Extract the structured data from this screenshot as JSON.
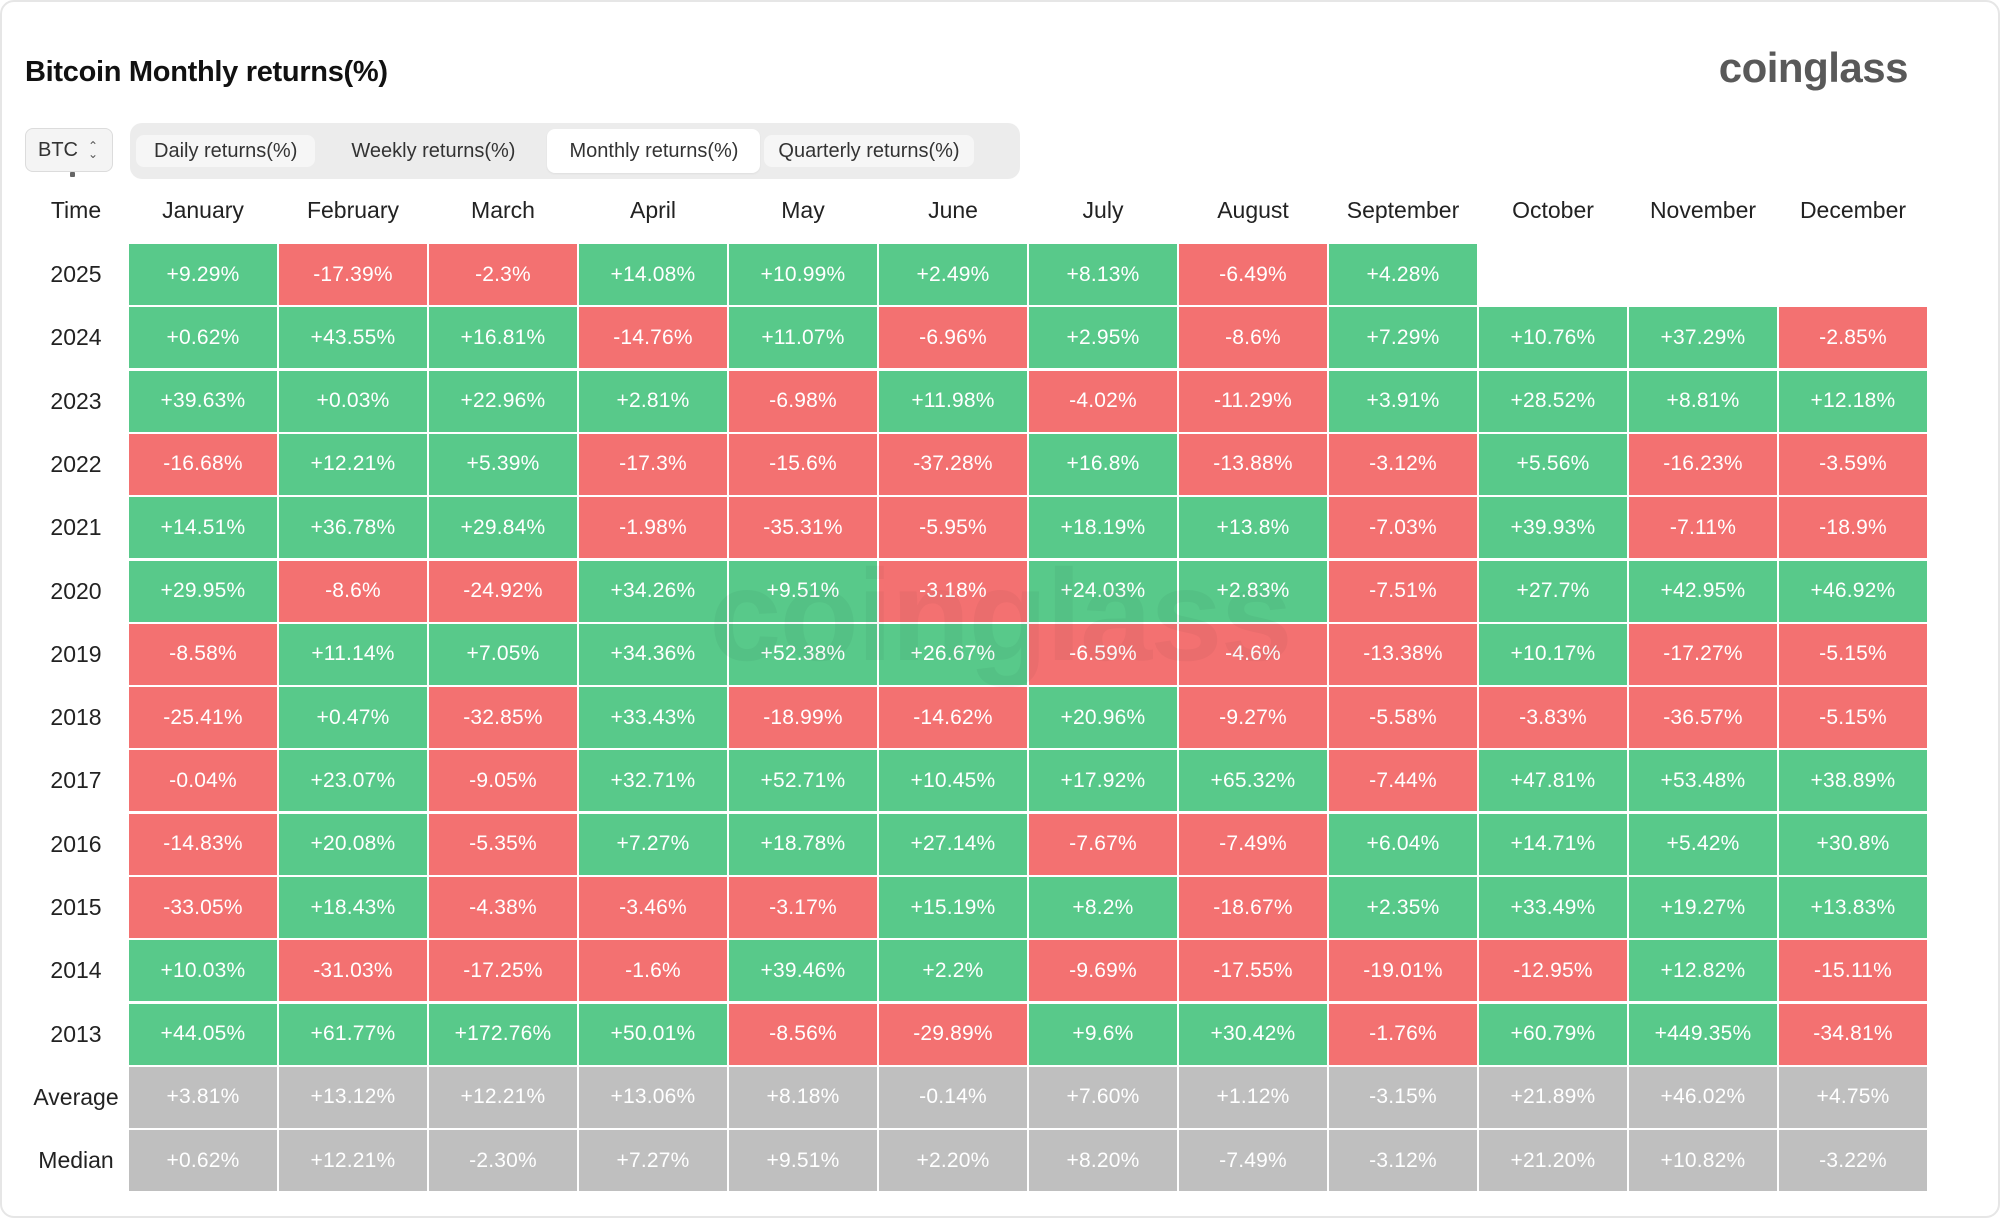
{
  "title": "Bitcoin Monthly returns(%)",
  "brand": "coinglass",
  "watermark": "coinglass",
  "asset_select": {
    "value": "BTC"
  },
  "tabs": [
    {
      "label": "Daily returns(%)",
      "active": false
    },
    {
      "label": "Weekly returns(%)",
      "active": false
    },
    {
      "label": "Monthly returns(%)",
      "active": true
    },
    {
      "label": "Quarterly returns(%)",
      "active": false
    }
  ],
  "colors": {
    "positive": "#58c98a",
    "negative": "#f37171",
    "summary": "#bfbfbf"
  },
  "chart_data": {
    "type": "heatmap",
    "row_header": "Time",
    "columns": [
      "January",
      "February",
      "March",
      "April",
      "May",
      "June",
      "July",
      "August",
      "September",
      "October",
      "November",
      "December"
    ],
    "rows": [
      {
        "label": "2025",
        "values": [
          "+9.29%",
          "-17.39%",
          "-2.3%",
          "+14.08%",
          "+10.99%",
          "+2.49%",
          "+8.13%",
          "-6.49%",
          "+4.28%",
          null,
          null,
          null
        ]
      },
      {
        "label": "2024",
        "values": [
          "+0.62%",
          "+43.55%",
          "+16.81%",
          "-14.76%",
          "+11.07%",
          "-6.96%",
          "+2.95%",
          "-8.6%",
          "+7.29%",
          "+10.76%",
          "+37.29%",
          "-2.85%"
        ]
      },
      {
        "label": "2023",
        "values": [
          "+39.63%",
          "+0.03%",
          "+22.96%",
          "+2.81%",
          "-6.98%",
          "+11.98%",
          "-4.02%",
          "-11.29%",
          "+3.91%",
          "+28.52%",
          "+8.81%",
          "+12.18%"
        ]
      },
      {
        "label": "2022",
        "values": [
          "-16.68%",
          "+12.21%",
          "+5.39%",
          "-17.3%",
          "-15.6%",
          "-37.28%",
          "+16.8%",
          "-13.88%",
          "-3.12%",
          "+5.56%",
          "-16.23%",
          "-3.59%"
        ]
      },
      {
        "label": "2021",
        "values": [
          "+14.51%",
          "+36.78%",
          "+29.84%",
          "-1.98%",
          "-35.31%",
          "-5.95%",
          "+18.19%",
          "+13.8%",
          "-7.03%",
          "+39.93%",
          "-7.11%",
          "-18.9%"
        ]
      },
      {
        "label": "2020",
        "values": [
          "+29.95%",
          "-8.6%",
          "-24.92%",
          "+34.26%",
          "+9.51%",
          "-3.18%",
          "+24.03%",
          "+2.83%",
          "-7.51%",
          "+27.7%",
          "+42.95%",
          "+46.92%"
        ]
      },
      {
        "label": "2019",
        "values": [
          "-8.58%",
          "+11.14%",
          "+7.05%",
          "+34.36%",
          "+52.38%",
          "+26.67%",
          "-6.59%",
          "-4.6%",
          "-13.38%",
          "+10.17%",
          "-17.27%",
          "-5.15%"
        ]
      },
      {
        "label": "2018",
        "values": [
          "-25.41%",
          "+0.47%",
          "-32.85%",
          "+33.43%",
          "-18.99%",
          "-14.62%",
          "+20.96%",
          "-9.27%",
          "-5.58%",
          "-3.83%",
          "-36.57%",
          "-5.15%"
        ]
      },
      {
        "label": "2017",
        "values": [
          "-0.04%",
          "+23.07%",
          "-9.05%",
          "+32.71%",
          "+52.71%",
          "+10.45%",
          "+17.92%",
          "+65.32%",
          "-7.44%",
          "+47.81%",
          "+53.48%",
          "+38.89%"
        ]
      },
      {
        "label": "2016",
        "values": [
          "-14.83%",
          "+20.08%",
          "-5.35%",
          "+7.27%",
          "+18.78%",
          "+27.14%",
          "-7.67%",
          "-7.49%",
          "+6.04%",
          "+14.71%",
          "+5.42%",
          "+30.8%"
        ]
      },
      {
        "label": "2015",
        "values": [
          "-33.05%",
          "+18.43%",
          "-4.38%",
          "-3.46%",
          "-3.17%",
          "+15.19%",
          "+8.2%",
          "-18.67%",
          "+2.35%",
          "+33.49%",
          "+19.27%",
          "+13.83%"
        ]
      },
      {
        "label": "2014",
        "values": [
          "+10.03%",
          "-31.03%",
          "-17.25%",
          "-1.6%",
          "+39.46%",
          "+2.2%",
          "-9.69%",
          "-17.55%",
          "-19.01%",
          "-12.95%",
          "+12.82%",
          "-15.11%"
        ]
      },
      {
        "label": "2013",
        "values": [
          "+44.05%",
          "+61.77%",
          "+172.76%",
          "+50.01%",
          "-8.56%",
          "-29.89%",
          "+9.6%",
          "+30.42%",
          "-1.76%",
          "+60.79%",
          "+449.35%",
          "-34.81%"
        ]
      }
    ],
    "summary_rows": [
      {
        "label": "Average",
        "values": [
          "+3.81%",
          "+13.12%",
          "+12.21%",
          "+13.06%",
          "+8.18%",
          "-0.14%",
          "+7.60%",
          "+1.12%",
          "-3.15%",
          "+21.89%",
          "+46.02%",
          "+4.75%"
        ]
      },
      {
        "label": "Median",
        "values": [
          "+0.62%",
          "+12.21%",
          "-2.30%",
          "+7.27%",
          "+9.51%",
          "+2.20%",
          "+8.20%",
          "-7.49%",
          "-3.12%",
          "+21.20%",
          "+10.82%",
          "-3.22%"
        ]
      }
    ]
  }
}
